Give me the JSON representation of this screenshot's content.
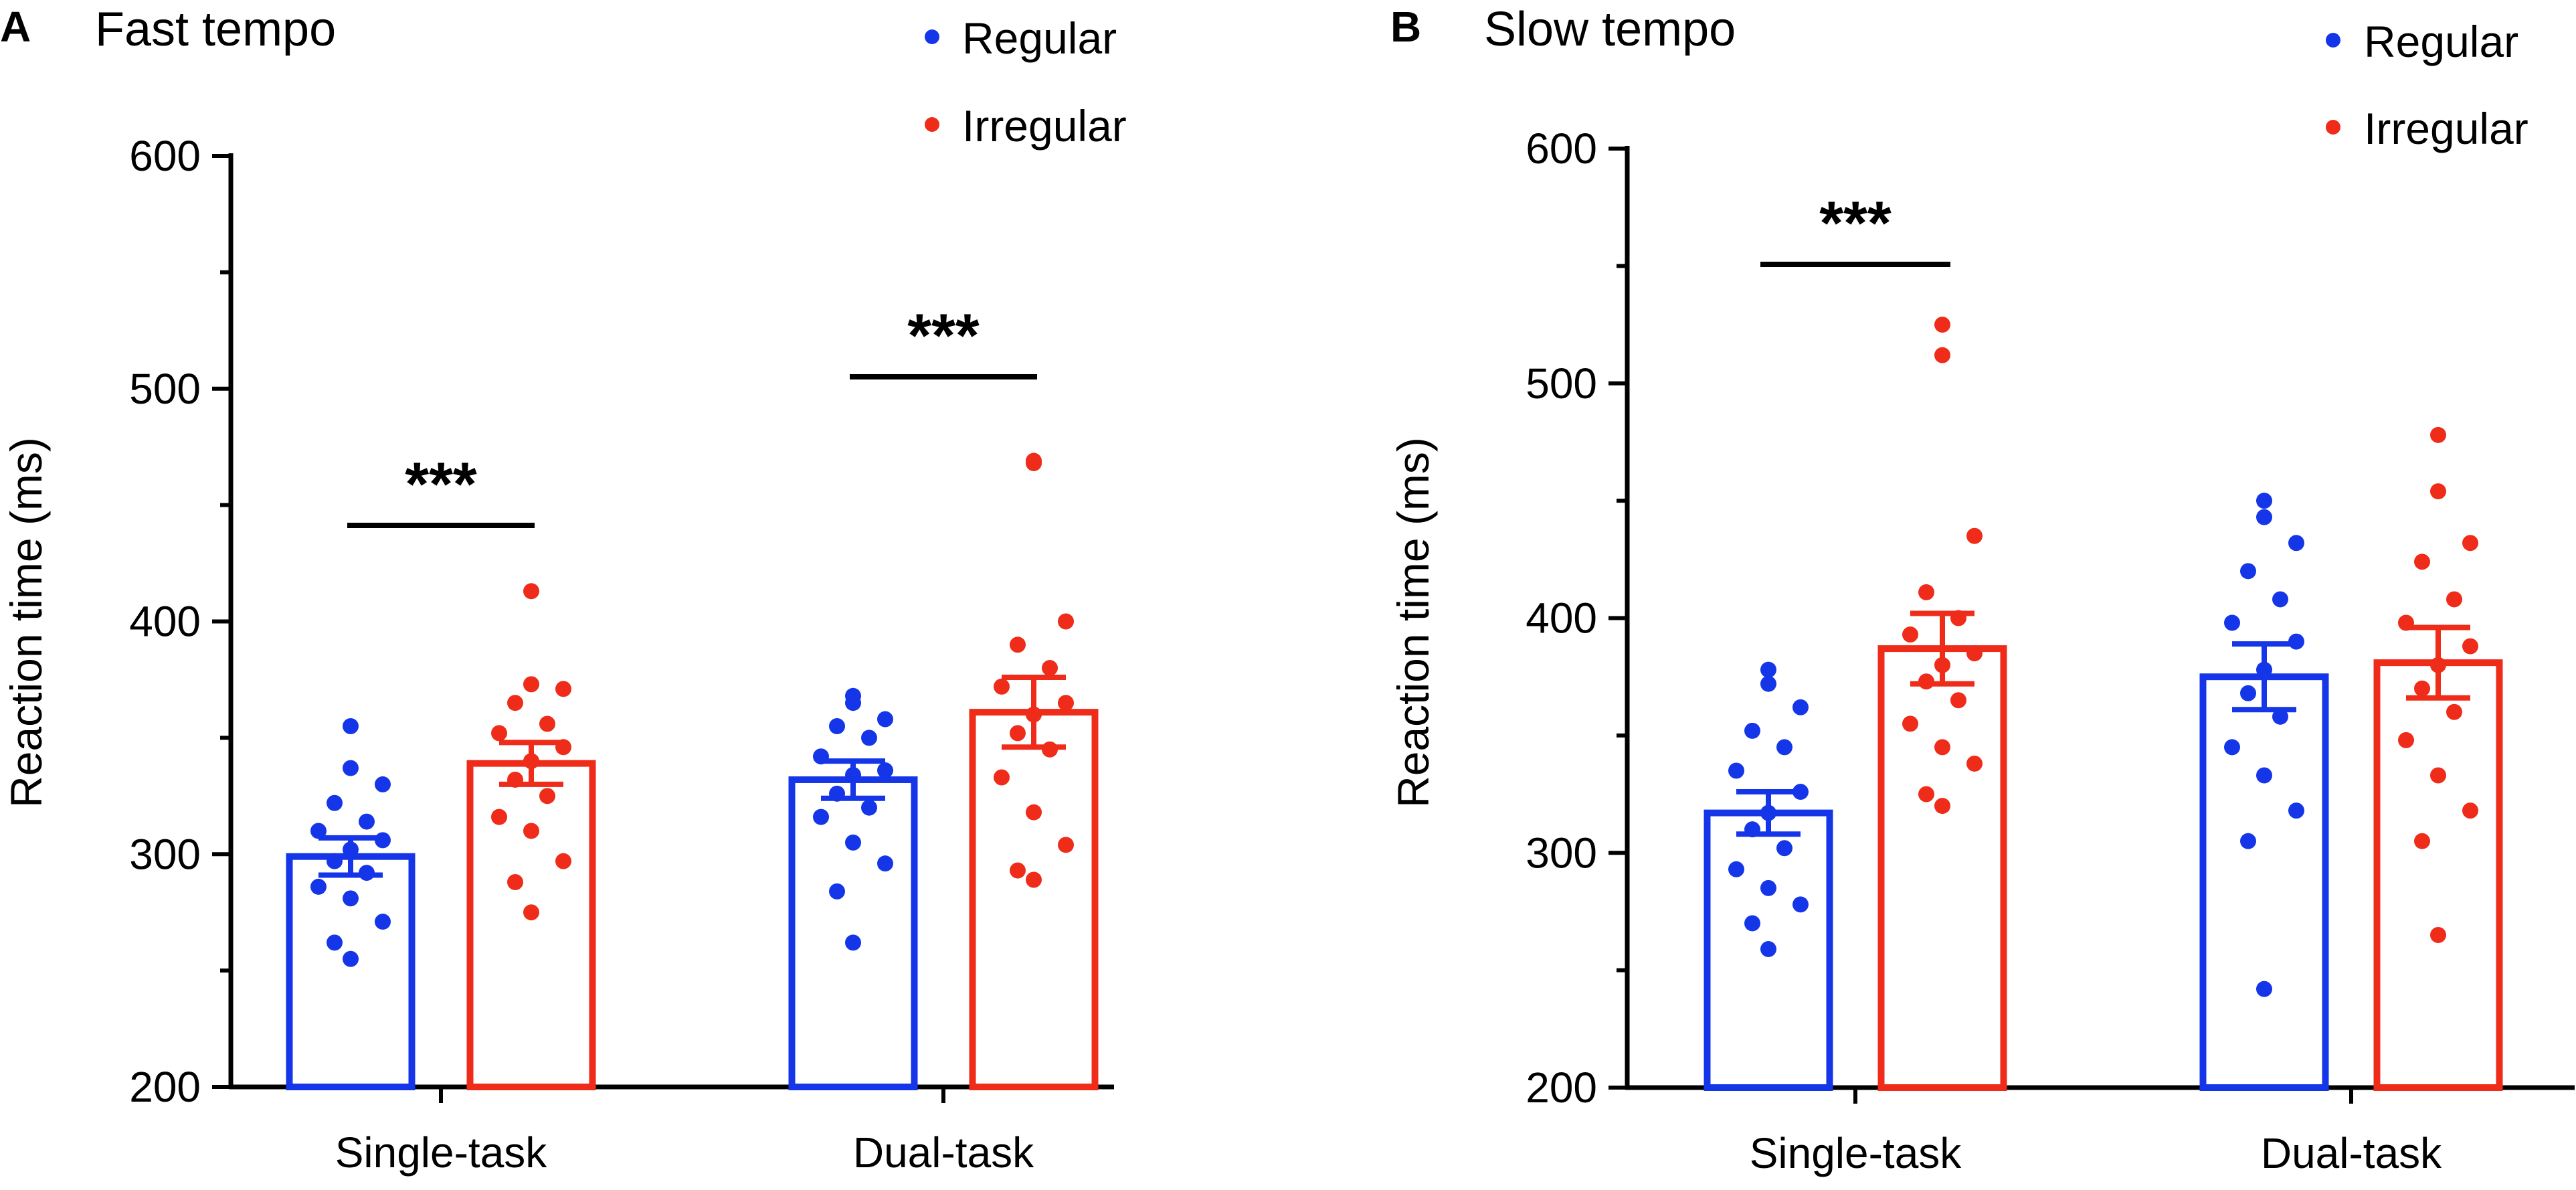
{
  "figure": {
    "panels": [
      {
        "letter": "A",
        "title": "Fast tempo"
      },
      {
        "letter": "B",
        "title": "Slow tempo"
      }
    ]
  },
  "colors": {
    "regular": "#1536e8",
    "irregular": "#ef2b19",
    "axis": "#000000"
  },
  "chart_data": [
    {
      "type": "bar",
      "title": "Fast tempo",
      "panel_letter": "A",
      "xlabel": "",
      "ylabel": "Reaction time (ms)",
      "ylim": [
        200,
        600
      ],
      "yticks": [
        200,
        300,
        400,
        500,
        600
      ],
      "categories": [
        "Single-task",
        "Dual-task"
      ],
      "legend": [
        "Regular",
        "Irregular"
      ],
      "legend_position": "top-right",
      "series": [
        {
          "name": "Regular",
          "values": [
            299,
            332
          ],
          "sem": [
            8,
            8
          ],
          "points": [
            [
              355,
              337,
              330,
              322,
              314,
              310,
              306,
              302,
              297,
              292,
              286,
              281,
              271,
              262,
              255
            ],
            [
              368,
              365,
              358,
              355,
              350,
              342,
              336,
              334,
              326,
              320,
              316,
              305,
              296,
              284,
              262
            ]
          ]
        },
        {
          "name": "Irregular",
          "values": [
            339,
            361
          ],
          "sem": [
            9,
            15
          ],
          "points": [
            [
              413,
              373,
              371,
              365,
              356,
              352,
              346,
              340,
              332,
              325,
              316,
              310,
              297,
              288,
              275
            ],
            [
              469,
              468,
              400,
              390,
              380,
              372,
              365,
              360,
              352,
              345,
              333,
              318,
              304,
              293,
              289
            ]
          ]
        }
      ],
      "significance": [
        {
          "category": "Single-task",
          "label": "***"
        },
        {
          "category": "Dual-task",
          "label": "***"
        }
      ]
    },
    {
      "type": "bar",
      "title": "Slow tempo",
      "panel_letter": "B",
      "xlabel": "",
      "ylabel": "Reaction time (ms)",
      "ylim": [
        200,
        600
      ],
      "yticks": [
        200,
        300,
        400,
        500,
        600
      ],
      "categories": [
        "Single-task",
        "Dual-task"
      ],
      "legend": [
        "Regular",
        "Irregular"
      ],
      "legend_position": "top-right",
      "series": [
        {
          "name": "Regular",
          "values": [
            317,
            375
          ],
          "sem": [
            9,
            14
          ],
          "points": [
            [
              378,
              372,
              362,
              352,
              345,
              335,
              326,
              317,
              310,
              302,
              293,
              285,
              278,
              270,
              259
            ],
            [
              450,
              443,
              432,
              420,
              408,
              398,
              390,
              378,
              368,
              358,
              345,
              333,
              318,
              305,
              242
            ]
          ]
        },
        {
          "name": "Irregular",
          "values": [
            387,
            381
          ],
          "sem": [
            15,
            15
          ],
          "points": [
            [
              525,
              512,
              435,
              411,
              400,
              393,
              385,
              380,
              373,
              365,
              355,
              345,
              338,
              325,
              320
            ],
            [
              478,
              454,
              432,
              424,
              408,
              398,
              388,
              380,
              370,
              360,
              348,
              333,
              318,
              305,
              265
            ]
          ]
        }
      ],
      "significance": [
        {
          "category": "Single-task",
          "label": "***"
        }
      ]
    }
  ]
}
